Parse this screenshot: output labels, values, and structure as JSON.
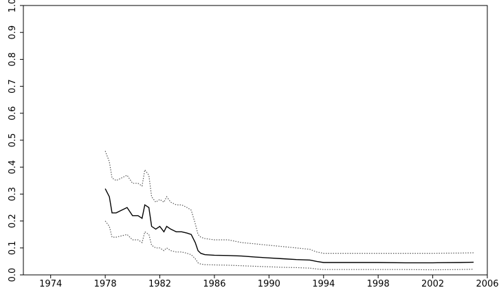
{
  "chart_data": {
    "type": "line",
    "title": "",
    "xlabel": "",
    "ylabel": "",
    "xlim": [
      1972,
      2006
    ],
    "ylim": [
      0,
      1.0
    ],
    "grid": false,
    "legend": "none",
    "x_ticks": [
      1974,
      1978,
      1982,
      1986,
      1990,
      1994,
      1998,
      2002,
      2006
    ],
    "x_tick_labels": [
      "1974",
      "1978",
      "1982",
      "1986",
      "1990",
      "1994",
      "1998",
      "2002",
      "2006"
    ],
    "y_ticks": [
      0,
      0.1,
      0.2,
      0.3,
      0.4,
      0.5,
      0.6,
      0.7,
      0.8,
      0.9,
      1.0
    ],
    "y_tick_labels": [
      "0.0",
      "0.1",
      "0.2",
      "0.3",
      "0.4",
      "0.5",
      "0.6",
      "0.7",
      "0.8",
      "0.9",
      "1.0"
    ],
    "series": [
      {
        "role": "estimate",
        "style": "solid",
        "color": "#000000",
        "points": [
          [
            1978.0,
            0.32
          ],
          [
            1978.3,
            0.29
          ],
          [
            1978.5,
            0.23
          ],
          [
            1978.8,
            0.23
          ],
          [
            1979.2,
            0.24
          ],
          [
            1979.6,
            0.25
          ],
          [
            1980.0,
            0.22
          ],
          [
            1980.4,
            0.22
          ],
          [
            1980.7,
            0.21
          ],
          [
            1980.9,
            0.26
          ],
          [
            1981.2,
            0.25
          ],
          [
            1981.4,
            0.18
          ],
          [
            1981.7,
            0.17
          ],
          [
            1982.0,
            0.18
          ],
          [
            1982.3,
            0.16
          ],
          [
            1982.5,
            0.18
          ],
          [
            1982.8,
            0.17
          ],
          [
            1983.2,
            0.16
          ],
          [
            1983.6,
            0.16
          ],
          [
            1984.0,
            0.155
          ],
          [
            1984.3,
            0.15
          ],
          [
            1984.6,
            0.12
          ],
          [
            1984.8,
            0.09
          ],
          [
            1985.0,
            0.08
          ],
          [
            1985.3,
            0.075
          ],
          [
            1986.0,
            0.073
          ],
          [
            1987.0,
            0.072
          ],
          [
            1988.0,
            0.07
          ],
          [
            1989.0,
            0.066
          ],
          [
            1990.0,
            0.063
          ],
          [
            1991.0,
            0.06
          ],
          [
            1992.0,
            0.057
          ],
          [
            1993.0,
            0.055
          ],
          [
            1993.5,
            0.05
          ],
          [
            1994.0,
            0.046
          ],
          [
            1996.0,
            0.046
          ],
          [
            1998.0,
            0.046
          ],
          [
            2000.0,
            0.045
          ],
          [
            2002.0,
            0.045
          ],
          [
            2004.0,
            0.046
          ],
          [
            2005.0,
            0.047
          ]
        ]
      },
      {
        "role": "upper-bound",
        "style": "dotted",
        "color": "#555555",
        "points": [
          [
            1978.0,
            0.46
          ],
          [
            1978.3,
            0.42
          ],
          [
            1978.5,
            0.36
          ],
          [
            1978.8,
            0.35
          ],
          [
            1979.2,
            0.36
          ],
          [
            1979.6,
            0.37
          ],
          [
            1980.0,
            0.34
          ],
          [
            1980.4,
            0.34
          ],
          [
            1980.7,
            0.33
          ],
          [
            1980.9,
            0.39
          ],
          [
            1981.2,
            0.37
          ],
          [
            1981.4,
            0.29
          ],
          [
            1981.7,
            0.27
          ],
          [
            1982.0,
            0.28
          ],
          [
            1982.3,
            0.27
          ],
          [
            1982.5,
            0.29
          ],
          [
            1982.8,
            0.27
          ],
          [
            1983.2,
            0.26
          ],
          [
            1983.6,
            0.26
          ],
          [
            1984.0,
            0.25
          ],
          [
            1984.3,
            0.24
          ],
          [
            1984.6,
            0.19
          ],
          [
            1984.8,
            0.15
          ],
          [
            1985.0,
            0.14
          ],
          [
            1985.3,
            0.135
          ],
          [
            1986.0,
            0.13
          ],
          [
            1987.0,
            0.13
          ],
          [
            1988.0,
            0.12
          ],
          [
            1989.0,
            0.115
          ],
          [
            1990.0,
            0.11
          ],
          [
            1991.0,
            0.105
          ],
          [
            1992.0,
            0.1
          ],
          [
            1993.0,
            0.095
          ],
          [
            1993.5,
            0.085
          ],
          [
            1994.0,
            0.08
          ],
          [
            1996.0,
            0.08
          ],
          [
            1998.0,
            0.08
          ],
          [
            2000.0,
            0.08
          ],
          [
            2002.0,
            0.08
          ],
          [
            2004.0,
            0.081
          ],
          [
            2005.0,
            0.082
          ]
        ]
      },
      {
        "role": "lower-bound",
        "style": "dotted",
        "color": "#555555",
        "points": [
          [
            1978.0,
            0.2
          ],
          [
            1978.3,
            0.18
          ],
          [
            1978.5,
            0.14
          ],
          [
            1978.8,
            0.14
          ],
          [
            1979.2,
            0.145
          ],
          [
            1979.6,
            0.15
          ],
          [
            1980.0,
            0.13
          ],
          [
            1980.4,
            0.13
          ],
          [
            1980.7,
            0.12
          ],
          [
            1980.9,
            0.16
          ],
          [
            1981.2,
            0.15
          ],
          [
            1981.4,
            0.11
          ],
          [
            1981.7,
            0.1
          ],
          [
            1982.0,
            0.1
          ],
          [
            1982.3,
            0.09
          ],
          [
            1982.5,
            0.1
          ],
          [
            1982.8,
            0.09
          ],
          [
            1983.2,
            0.085
          ],
          [
            1983.6,
            0.085
          ],
          [
            1984.0,
            0.08
          ],
          [
            1984.3,
            0.075
          ],
          [
            1984.6,
            0.06
          ],
          [
            1984.8,
            0.045
          ],
          [
            1985.0,
            0.04
          ],
          [
            1985.3,
            0.038
          ],
          [
            1986.0,
            0.037
          ],
          [
            1987.0,
            0.036
          ],
          [
            1988.0,
            0.034
          ],
          [
            1989.0,
            0.032
          ],
          [
            1990.0,
            0.03
          ],
          [
            1991.0,
            0.028
          ],
          [
            1992.0,
            0.027
          ],
          [
            1993.0,
            0.025
          ],
          [
            1993.5,
            0.022
          ],
          [
            1994.0,
            0.02
          ],
          [
            1996.0,
            0.02
          ],
          [
            1998.0,
            0.02
          ],
          [
            2000.0,
            0.02
          ],
          [
            2002.0,
            0.019
          ],
          [
            2004.0,
            0.02
          ],
          [
            2005.0,
            0.021
          ]
        ]
      }
    ]
  }
}
